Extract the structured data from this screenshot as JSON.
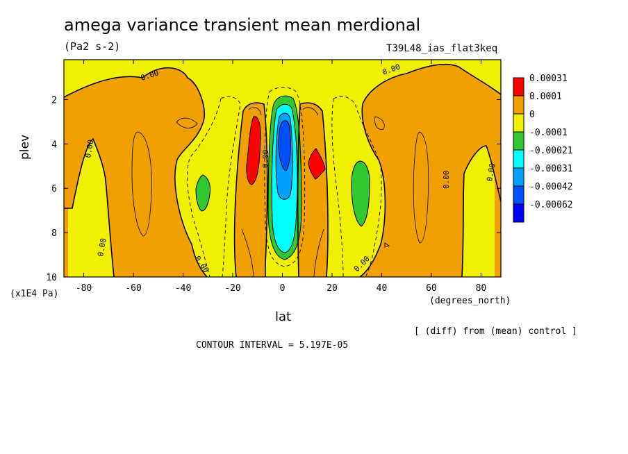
{
  "chart_data": {
    "type": "heatmap",
    "title": "amega variance transient mean merdional",
    "units": "(Pa2 s-2)",
    "run_label": "T39L48_ias_flat3keq",
    "xlabel": "lat",
    "x_units": "(degrees_north)",
    "ylabel": "plev",
    "y_units": "(x1E4 Pa)",
    "xlim": [
      -88,
      88
    ],
    "ylim": [
      10,
      0.2
    ],
    "x_ticks": [
      "-80",
      "-60",
      "-40",
      "-20",
      "0",
      "20",
      "40",
      "60",
      "80"
    ],
    "y_ticks": [
      "2",
      "4",
      "6",
      "8",
      "10"
    ],
    "note": "[ (diff) from (mean) control ]",
    "contour_interval": "CONTOUR INTERVAL = 5.197E-05",
    "colorbar_levels": [
      "0.00031",
      "0.0001",
      "0",
      "-0.0001",
      "-0.00021",
      "-0.00031",
      "-0.00042",
      "-0.00062"
    ],
    "colorbar_colors": [
      "#ff0000",
      "#f0a000",
      "#f0f000",
      "#32c832",
      "#00ffff",
      "#00a0ff",
      "#0050ff",
      "#0000ff"
    ],
    "contour_labels": [
      "0.00",
      "0.00",
      "0.00",
      "0.00",
      "0.00",
      "0.00",
      "0.00",
      "0.00",
      "0.00"
    ],
    "features": [
      {
        "kind": "max",
        "lat": -11,
        "plev": 4.5,
        "level": "0.00031"
      },
      {
        "kind": "max",
        "lat": 14,
        "plev": 5.0,
        "level": "0.00031"
      },
      {
        "kind": "min",
        "lat": 0,
        "plev": 4.0,
        "level": "-0.00062"
      },
      {
        "kind": "min",
        "lat": -32,
        "plev": 6.0,
        "level": "-0.0001"
      },
      {
        "kind": "min",
        "lat": 31,
        "plev": 6.0,
        "level": "-0.0001"
      }
    ]
  }
}
